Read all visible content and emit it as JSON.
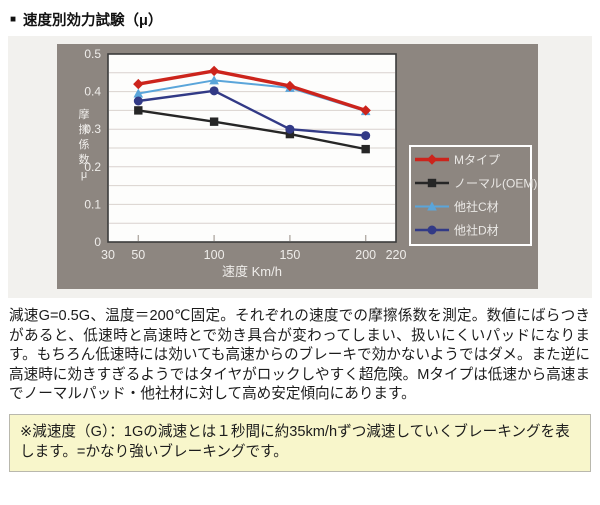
{
  "header": {
    "bullet": "■",
    "title": "速度別効力試験（μ）"
  },
  "chart_data": {
    "type": "line",
    "x": [
      50,
      100,
      150,
      200
    ],
    "series": [
      {
        "name": "Mタイプ",
        "color": "#cc241c",
        "marker": "diamond",
        "line_width": 3.4,
        "values": [
          0.42,
          0.455,
          0.415,
          0.35
        ]
      },
      {
        "name": "ノーマル(OEM)",
        "color": "#262626",
        "marker": "square",
        "line_width": 2.4,
        "values": [
          0.35,
          0.32,
          0.287,
          0.247
        ]
      },
      {
        "name": "他社C材",
        "color": "#5aa5da",
        "marker": "triangle",
        "line_width": 2.0,
        "values": [
          0.395,
          0.43,
          0.41,
          0.348
        ]
      },
      {
        "name": "他社D材",
        "color": "#323a86",
        "marker": "circle",
        "line_width": 2.4,
        "values": [
          0.375,
          0.402,
          0.3,
          0.283
        ]
      }
    ],
    "draw_order": [
      2,
      1,
      3,
      0
    ],
    "title": "速度別効力試験（μ）",
    "xlabel": "速度 Km/h",
    "ylabel": "摩擦係数μ",
    "xlim": [
      30,
      220
    ],
    "ylim": [
      0,
      0.5
    ],
    "x_ticks": [
      30,
      50,
      100,
      150,
      200,
      220
    ],
    "y_ticks": [
      0,
      0.1,
      0.2,
      0.3,
      0.4,
      0.5
    ],
    "grid_step": 0.05,
    "grid": true,
    "legend_position": "inside-right",
    "colors": {
      "panel_bg": "#8d8680",
      "plot_bg": "#fdfdfc",
      "grid": "#d9d2ce",
      "spine": "#3b3b3b",
      "tick": "#b3ada7",
      "axis_text": "#efedea",
      "legend_border": "#ffffff",
      "legend_text": "#eae8e5"
    }
  },
  "description": {
    "text": "減速G=0.5G、温度＝200℃固定。それぞれの速度での摩擦係数を測定。数値にばらつきがあると、低速時と高速時とで効き具合が変わってしまい、扱いにくいパッドになります。もちろん低速時には効いても高速からのブレーキで効かないようではダメ。また逆に高速時に効きすぎるようではタイヤがロックしやすく超危険。Mタイプは低速から高速までノーマルパッド・他社材に対して高め安定傾向にあります。"
  },
  "note": {
    "text": "※減速度（G）：1Gの減速とは１秒間に約35km/hずつ減速していくブレーキングを表します。=かなり強いブレーキングです。"
  }
}
